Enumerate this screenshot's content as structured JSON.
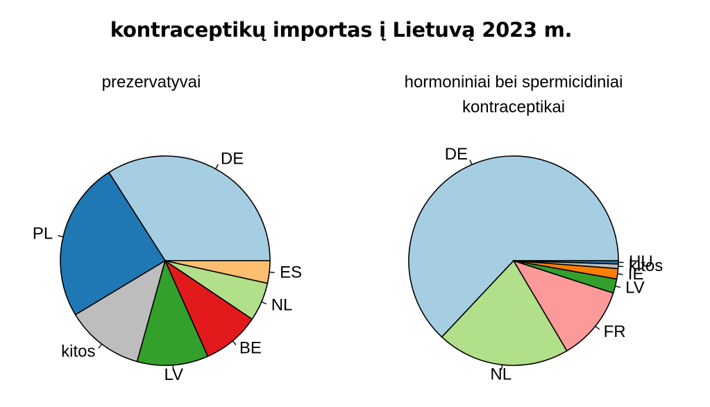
{
  "title": "kontraceptikų importas į Lietuvą 2023 m.",
  "charts": {
    "left_subtitle": "prezervatyvai",
    "right_subtitle_line1": "hormoniniai bei spermicidiniai",
    "right_subtitle_line2": "kontraceptikai"
  },
  "chart_data": [
    {
      "type": "pie",
      "title": "prezervatyvai",
      "start": "counterclockwise from 3 o'clock",
      "slices": [
        {
          "label": "DE",
          "value": 32.5,
          "color": "#a6cee3"
        },
        {
          "label": "PL",
          "value": 23.5,
          "color": "#1f78b4"
        },
        {
          "label": "kitos",
          "value": 11.5,
          "color": "#bdbdbd"
        },
        {
          "label": "LV",
          "value": 10.5,
          "color": "#33a02c"
        },
        {
          "label": "BE",
          "value": 8.5,
          "color": "#e31a1c"
        },
        {
          "label": "NL",
          "value": 5.7,
          "color": "#b2df8a"
        },
        {
          "label": "ES",
          "value": 3.3,
          "color": "#fdbf6f"
        }
      ]
    },
    {
      "type": "pie",
      "title": "hormoniniai bei spermicidiniai kontraceptikai",
      "start": "counterclockwise from 3 o'clock",
      "slices": [
        {
          "label": "DE",
          "value": 63.0,
          "color": "#a6cee3"
        },
        {
          "label": "NL",
          "value": 20.5,
          "color": "#b2df8a"
        },
        {
          "label": "FR",
          "value": 11.5,
          "color": "#fb9a99"
        },
        {
          "label": "LV",
          "value": 2.2,
          "color": "#33a02c"
        },
        {
          "label": "IE",
          "value": 1.6,
          "color": "#ff7f00"
        },
        {
          "label": "kitos",
          "value": 0.7,
          "color": "#bdbdbd"
        },
        {
          "label": "HU",
          "value": 0.5,
          "color": "#1f78b4"
        }
      ]
    }
  ]
}
